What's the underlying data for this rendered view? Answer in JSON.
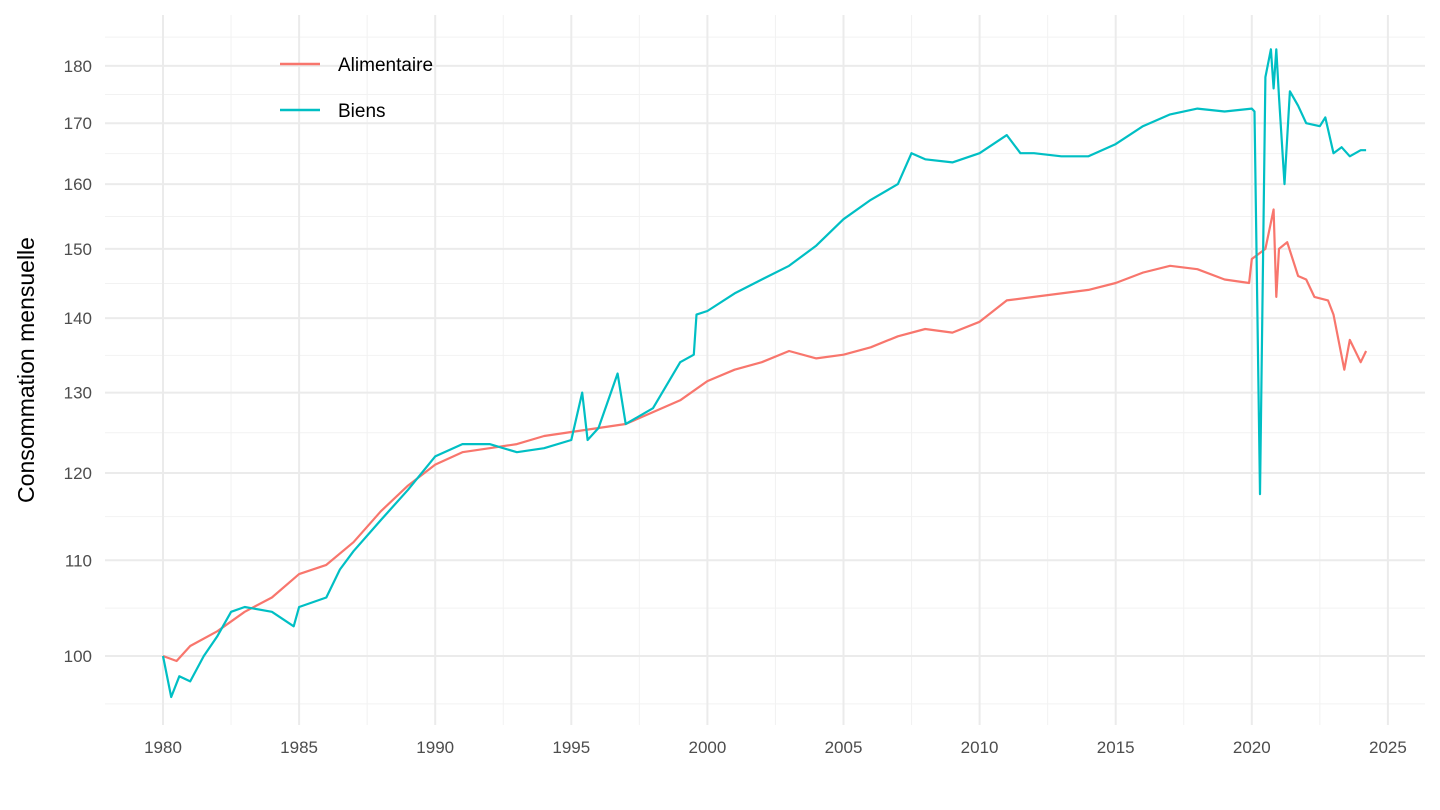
{
  "chart_data": {
    "type": "line",
    "title": "",
    "xlabel": "",
    "ylabel": "Consommation mensuelle",
    "y_scale": "log",
    "xlim": [
      1978.5,
      2026
    ],
    "ylim": [
      95,
      183
    ],
    "x_ticks": [
      "1980",
      "1985",
      "1990",
      "1995",
      "2000",
      "2005",
      "2010",
      "2015",
      "2020",
      "2025"
    ],
    "y_ticks": [
      "100",
      "110",
      "120",
      "130",
      "140",
      "150",
      "160",
      "170",
      "180"
    ],
    "legend_position": "top-left",
    "series": [
      {
        "name": "Alimentaire",
        "color": "#F8766D",
        "points": [
          [
            1980,
            100
          ],
          [
            1980.5,
            99.5
          ],
          [
            1981,
            101
          ],
          [
            1982,
            102.5
          ],
          [
            1983,
            104.5
          ],
          [
            1984,
            106
          ],
          [
            1985,
            108.5
          ],
          [
            1986,
            109.5
          ],
          [
            1987,
            112
          ],
          [
            1988,
            115.5
          ],
          [
            1989,
            118.5
          ],
          [
            1990,
            121
          ],
          [
            1991,
            122.5
          ],
          [
            1992,
            123
          ],
          [
            1993,
            123.5
          ],
          [
            1994,
            124.5
          ],
          [
            1995,
            125
          ],
          [
            1996,
            125.5
          ],
          [
            1997,
            126
          ],
          [
            1998,
            127.5
          ],
          [
            1999,
            129
          ],
          [
            2000,
            131.5
          ],
          [
            2001,
            133
          ],
          [
            2002,
            134
          ],
          [
            2003,
            135.5
          ],
          [
            2004,
            134.5
          ],
          [
            2005,
            135
          ],
          [
            2006,
            136
          ],
          [
            2007,
            137.5
          ],
          [
            2008,
            138.5
          ],
          [
            2009,
            138
          ],
          [
            2010,
            139.5
          ],
          [
            2011,
            142.5
          ],
          [
            2012,
            143
          ],
          [
            2013,
            143.5
          ],
          [
            2014,
            144
          ],
          [
            2015,
            145
          ],
          [
            2016,
            146.5
          ],
          [
            2017,
            147.5
          ],
          [
            2018,
            147
          ],
          [
            2019,
            145.5
          ],
          [
            2019.9,
            145
          ],
          [
            2020,
            148.5
          ],
          [
            2020.5,
            150
          ],
          [
            2020.8,
            156
          ],
          [
            2020.9,
            143
          ],
          [
            2021,
            150
          ],
          [
            2021.3,
            151
          ],
          [
            2021.7,
            146
          ],
          [
            2022,
            145.5
          ],
          [
            2022.3,
            143
          ],
          [
            2022.8,
            142.5
          ],
          [
            2023,
            140.5
          ],
          [
            2023.4,
            133
          ],
          [
            2023.6,
            137
          ],
          [
            2024,
            134
          ],
          [
            2024.2,
            135.5
          ]
        ]
      },
      {
        "name": "Biens",
        "color": "#00BFC4",
        "points": [
          [
            1980,
            100
          ],
          [
            1980.3,
            96
          ],
          [
            1980.6,
            98
          ],
          [
            1981,
            97.5
          ],
          [
            1981.5,
            100
          ],
          [
            1982,
            102
          ],
          [
            1982.5,
            104.5
          ],
          [
            1983,
            105
          ],
          [
            1984,
            104.5
          ],
          [
            1984.8,
            103
          ],
          [
            1985,
            105
          ],
          [
            1986,
            106
          ],
          [
            1986.5,
            109
          ],
          [
            1987,
            111
          ],
          [
            1988,
            114.5
          ],
          [
            1989,
            118
          ],
          [
            1990,
            122
          ],
          [
            1991,
            123.5
          ],
          [
            1992,
            123.5
          ],
          [
            1993,
            122.5
          ],
          [
            1994,
            123
          ],
          [
            1995,
            124
          ],
          [
            1995.4,
            130
          ],
          [
            1995.6,
            124
          ],
          [
            1996,
            125.5
          ],
          [
            1996.7,
            132.5
          ],
          [
            1997,
            126
          ],
          [
            1998,
            128
          ],
          [
            1999,
            134
          ],
          [
            1999.5,
            135
          ],
          [
            1999.6,
            140.5
          ],
          [
            2000,
            141
          ],
          [
            2001,
            143.5
          ],
          [
            2002,
            145.5
          ],
          [
            2003,
            147.5
          ],
          [
            2004,
            150.5
          ],
          [
            2005,
            154.5
          ],
          [
            2006,
            157.5
          ],
          [
            2007,
            160
          ],
          [
            2007.5,
            165
          ],
          [
            2008,
            164
          ],
          [
            2009,
            163.5
          ],
          [
            2010,
            165
          ],
          [
            2011,
            168
          ],
          [
            2011.5,
            165
          ],
          [
            2012,
            165
          ],
          [
            2013,
            164.5
          ],
          [
            2014,
            164.5
          ],
          [
            2015,
            166.5
          ],
          [
            2016,
            169.5
          ],
          [
            2017,
            171.5
          ],
          [
            2018,
            172.5
          ],
          [
            2019,
            172
          ],
          [
            2020,
            172.5
          ],
          [
            2020.1,
            172
          ],
          [
            2020.3,
            117.5
          ],
          [
            2020.5,
            178
          ],
          [
            2020.7,
            183
          ],
          [
            2020.8,
            176
          ],
          [
            2020.9,
            183
          ],
          [
            2021,
            174.5
          ],
          [
            2021.2,
            160
          ],
          [
            2021.4,
            175.5
          ],
          [
            2021.7,
            173
          ],
          [
            2022,
            170
          ],
          [
            2022.5,
            169.5
          ],
          [
            2022.7,
            171
          ],
          [
            2023,
            165
          ],
          [
            2023.3,
            166
          ],
          [
            2023.6,
            164.5
          ],
          [
            2024,
            165.5
          ],
          [
            2024.2,
            165.5
          ]
        ]
      }
    ]
  }
}
